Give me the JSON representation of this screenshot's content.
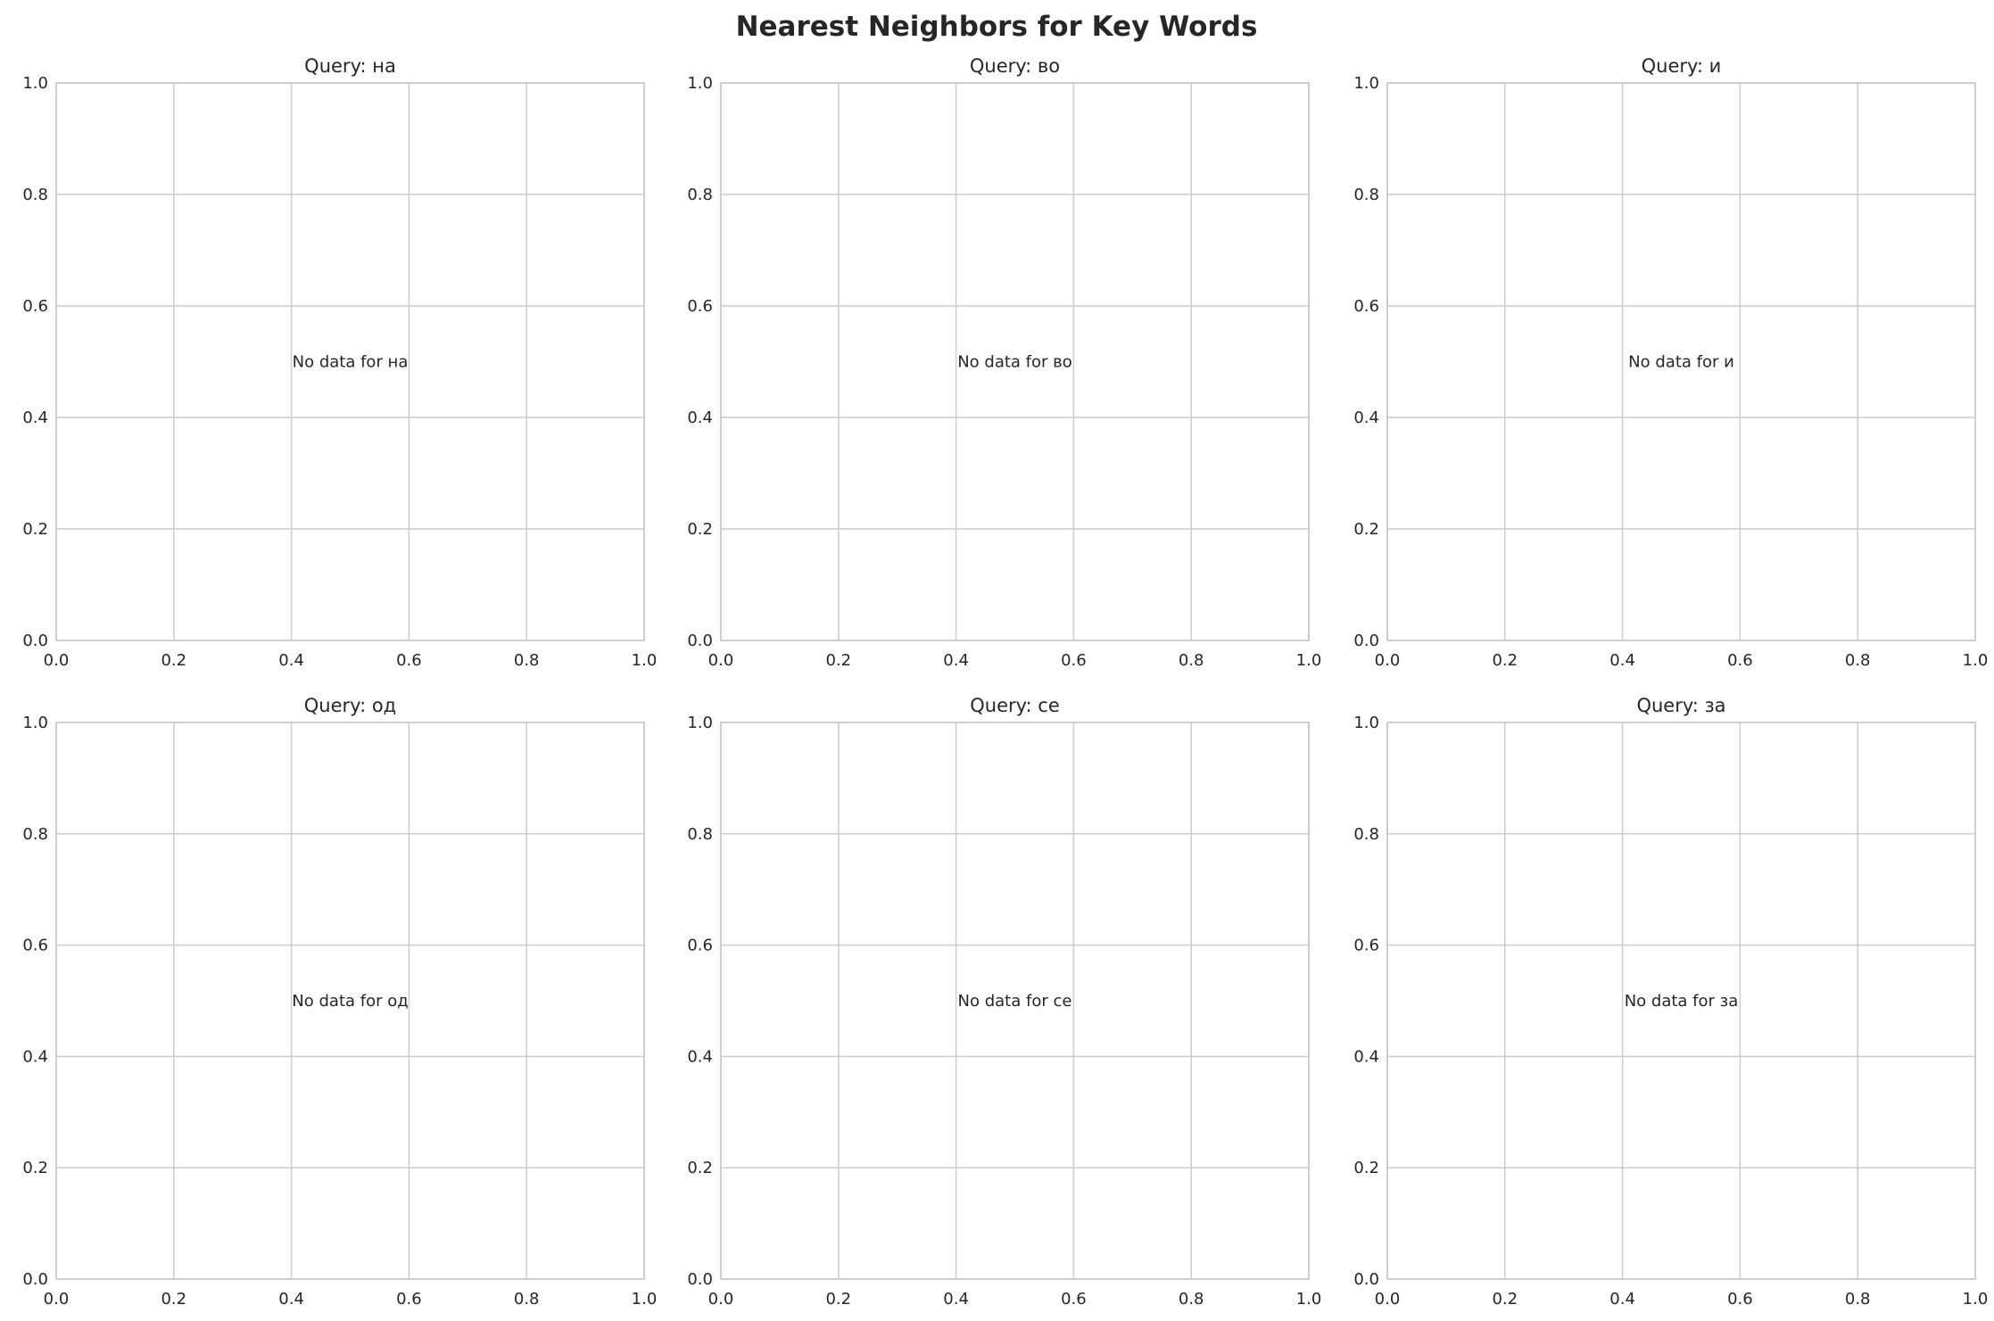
{
  "title": "Nearest Neighbors for Key Words",
  "chart_data": [
    {
      "type": "scatter",
      "title": "Query: на",
      "message": "No data for на",
      "xlim": [
        0,
        1
      ],
      "ylim": [
        0,
        1
      ],
      "xticks": [
        "0.0",
        "0.2",
        "0.4",
        "0.6",
        "0.8",
        "1.0"
      ],
      "yticks": [
        "0.0",
        "0.2",
        "0.4",
        "0.6",
        "0.8",
        "1.0"
      ],
      "grid": true
    },
    {
      "type": "scatter",
      "title": "Query: во",
      "message": "No data for во",
      "xlim": [
        0,
        1
      ],
      "ylim": [
        0,
        1
      ],
      "xticks": [
        "0.0",
        "0.2",
        "0.4",
        "0.6",
        "0.8",
        "1.0"
      ],
      "yticks": [
        "0.0",
        "0.2",
        "0.4",
        "0.6",
        "0.8",
        "1.0"
      ],
      "grid": true
    },
    {
      "type": "scatter",
      "title": "Query: и",
      "message": "No data for и",
      "xlim": [
        0,
        1
      ],
      "ylim": [
        0,
        1
      ],
      "xticks": [
        "0.0",
        "0.2",
        "0.4",
        "0.6",
        "0.8",
        "1.0"
      ],
      "yticks": [
        "0.0",
        "0.2",
        "0.4",
        "0.6",
        "0.8",
        "1.0"
      ],
      "grid": true
    },
    {
      "type": "scatter",
      "title": "Query: од",
      "message": "No data for од",
      "xlim": [
        0,
        1
      ],
      "ylim": [
        0,
        1
      ],
      "xticks": [
        "0.0",
        "0.2",
        "0.4",
        "0.6",
        "0.8",
        "1.0"
      ],
      "yticks": [
        "0.0",
        "0.2",
        "0.4",
        "0.6",
        "0.8",
        "1.0"
      ],
      "grid": true
    },
    {
      "type": "scatter",
      "title": "Query: се",
      "message": "No data for се",
      "xlim": [
        0,
        1
      ],
      "ylim": [
        0,
        1
      ],
      "xticks": [
        "0.0",
        "0.2",
        "0.4",
        "0.6",
        "0.8",
        "1.0"
      ],
      "yticks": [
        "0.0",
        "0.2",
        "0.4",
        "0.6",
        "0.8",
        "1.0"
      ],
      "grid": true
    },
    {
      "type": "scatter",
      "title": "Query: за",
      "message": "No data for за",
      "xlim": [
        0,
        1
      ],
      "ylim": [
        0,
        1
      ],
      "xticks": [
        "0.0",
        "0.2",
        "0.4",
        "0.6",
        "0.8",
        "1.0"
      ],
      "yticks": [
        "0.0",
        "0.2",
        "0.4",
        "0.6",
        "0.8",
        "1.0"
      ],
      "grid": true
    }
  ],
  "colors": {
    "grid": "#cccccc",
    "text": "#262626"
  }
}
